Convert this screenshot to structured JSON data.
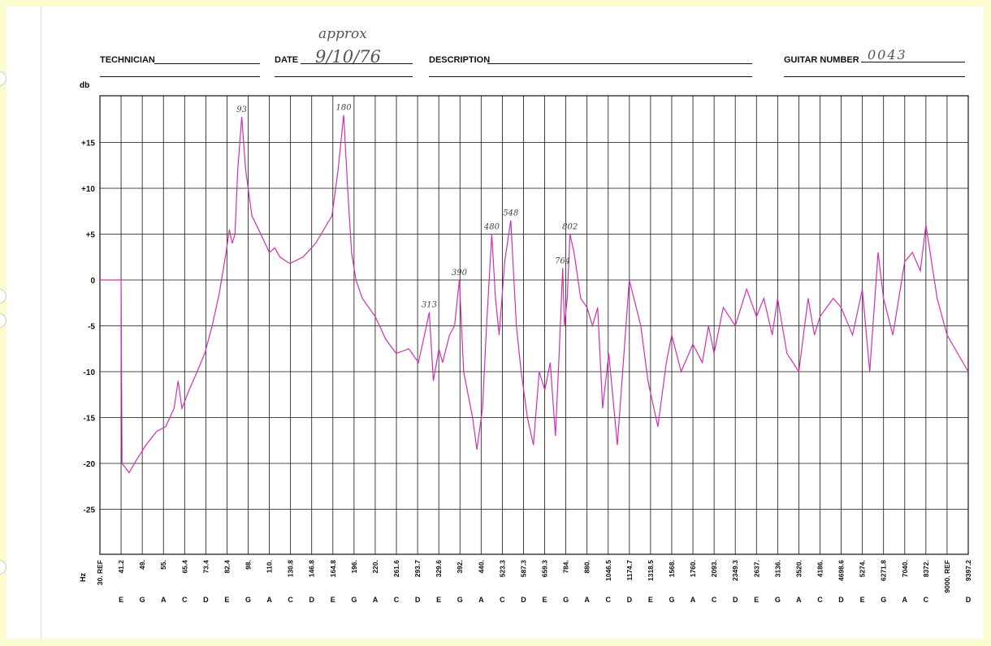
{
  "header": {
    "technician_label": "TECHNICIAN",
    "date_label": "DATE",
    "date_note": "approx",
    "date_value": "9/10/76",
    "description_label": "DESCRIPTION",
    "guitar_number_label": "GUITAR NUMBER",
    "guitar_number_value": "0043"
  },
  "colors": {
    "trace": "#d12fb4",
    "grid": "#111111",
    "page": "#ffffff",
    "border": "#fbfbcf"
  },
  "chart_data": {
    "type": "line",
    "ylabel": "db",
    "xlabel": "Hz",
    "ylim": [
      -30,
      20
    ],
    "y_ticks": [
      15,
      10,
      5,
      0,
      -5,
      -10,
      -15,
      -20,
      -25
    ],
    "y_tick_labels": [
      "+15",
      "+10",
      "+5",
      "0",
      "-5",
      "-10",
      "-15",
      "-20",
      "-25"
    ],
    "x_columns": [
      {
        "note": "",
        "freq": "30. REF"
      },
      {
        "note": "E",
        "freq": "41.2"
      },
      {
        "note": "G",
        "freq": "49."
      },
      {
        "note": "A",
        "freq": "55."
      },
      {
        "note": "C",
        "freq": "65.4"
      },
      {
        "note": "D",
        "freq": "73.4"
      },
      {
        "note": "E",
        "freq": "82.4"
      },
      {
        "note": "G",
        "freq": "98."
      },
      {
        "note": "A",
        "freq": "110."
      },
      {
        "note": "C",
        "freq": "130.8"
      },
      {
        "note": "D",
        "freq": "146.8"
      },
      {
        "note": "E",
        "freq": "164.8"
      },
      {
        "note": "G",
        "freq": "196."
      },
      {
        "note": "A",
        "freq": "220."
      },
      {
        "note": "C",
        "freq": "261.6"
      },
      {
        "note": "D",
        "freq": "293.7"
      },
      {
        "note": "E",
        "freq": "329.6"
      },
      {
        "note": "G",
        "freq": "392."
      },
      {
        "note": "A",
        "freq": "440."
      },
      {
        "note": "C",
        "freq": "523.3"
      },
      {
        "note": "D",
        "freq": "587.3"
      },
      {
        "note": "E",
        "freq": "659.3"
      },
      {
        "note": "G",
        "freq": "784."
      },
      {
        "note": "A",
        "freq": "880."
      },
      {
        "note": "C",
        "freq": "1046.5"
      },
      {
        "note": "D",
        "freq": "1174.7"
      },
      {
        "note": "E",
        "freq": "1318.5"
      },
      {
        "note": "G",
        "freq": "1568."
      },
      {
        "note": "A",
        "freq": "1760."
      },
      {
        "note": "C",
        "freq": "2093."
      },
      {
        "note": "D",
        "freq": "2349.3"
      },
      {
        "note": "E",
        "freq": "2637."
      },
      {
        "note": "G",
        "freq": "3136."
      },
      {
        "note": "A",
        "freq": "3520."
      },
      {
        "note": "C",
        "freq": "4186."
      },
      {
        "note": "D",
        "freq": "4698.6"
      },
      {
        "note": "E",
        "freq": "5274."
      },
      {
        "note": "G",
        "freq": "6271.8"
      },
      {
        "note": "A",
        "freq": "7040."
      },
      {
        "note": "C",
        "freq": "8372."
      },
      {
        "note": "",
        "freq": "9000. REF"
      },
      {
        "note": "D",
        "freq": "9397.2"
      }
    ],
    "peak_annotations": [
      {
        "label": "93",
        "freq": 93,
        "db": 17.8
      },
      {
        "label": "180",
        "freq": 180,
        "db": 18
      },
      {
        "label": "313",
        "freq": 313,
        "db": -3.5
      },
      {
        "label": "390",
        "freq": 390,
        "db": 0
      },
      {
        "label": "480",
        "freq": 480,
        "db": 5
      },
      {
        "label": "548",
        "freq": 548,
        "db": 6.5
      },
      {
        "label": "764",
        "freq": 764,
        "db": 1.3
      },
      {
        "label": "802",
        "freq": 802,
        "db": 5
      }
    ],
    "series": [
      {
        "points": [
          [
            30,
            0
          ],
          [
            41.2,
            0
          ],
          [
            41.5,
            -20
          ],
          [
            44,
            -21
          ],
          [
            47,
            -19.5
          ],
          [
            50,
            -18
          ],
          [
            53,
            -16.5
          ],
          [
            56,
            -16
          ],
          [
            60,
            -14
          ],
          [
            62,
            -11
          ],
          [
            64,
            -14
          ],
          [
            67,
            -12
          ],
          [
            70,
            -10
          ],
          [
            73,
            -8
          ],
          [
            76,
            -5
          ],
          [
            79,
            -1.5
          ],
          [
            82,
            3
          ],
          [
            84,
            5.5
          ],
          [
            86,
            4
          ],
          [
            88,
            5
          ],
          [
            90,
            12
          ],
          [
            93,
            17.8
          ],
          [
            96,
            12
          ],
          [
            100,
            7
          ],
          [
            105,
            5
          ],
          [
            110,
            3
          ],
          [
            115,
            3.5
          ],
          [
            120,
            2.5
          ],
          [
            130,
            1.8
          ],
          [
            140,
            2.5
          ],
          [
            150,
            4
          ],
          [
            164,
            7
          ],
          [
            172,
            12
          ],
          [
            180,
            18
          ],
          [
            186,
            10
          ],
          [
            192,
            3
          ],
          [
            198,
            0
          ],
          [
            205,
            -2
          ],
          [
            220,
            -4
          ],
          [
            240,
            -6.5
          ],
          [
            261,
            -8
          ],
          [
            280,
            -7.5
          ],
          [
            295,
            -9
          ],
          [
            305,
            -6
          ],
          [
            313,
            -3.5
          ],
          [
            320,
            -11
          ],
          [
            330,
            -7.5
          ],
          [
            340,
            -9
          ],
          [
            360,
            -6
          ],
          [
            375,
            -5
          ],
          [
            390,
            0
          ],
          [
            400,
            -10
          ],
          [
            420,
            -15
          ],
          [
            430,
            -18.5
          ],
          [
            445,
            -14
          ],
          [
            460,
            -5
          ],
          [
            480,
            5
          ],
          [
            495,
            -2
          ],
          [
            510,
            -6
          ],
          [
            530,
            2
          ],
          [
            548,
            6.5
          ],
          [
            565,
            -5
          ],
          [
            580,
            -10
          ],
          [
            600,
            -15
          ],
          [
            620,
            -18
          ],
          [
            640,
            -10
          ],
          [
            660,
            -12
          ],
          [
            690,
            -9
          ],
          [
            720,
            -17
          ],
          [
            740,
            -9
          ],
          [
            764,
            1.3
          ],
          [
            775,
            -5
          ],
          [
            790,
            -2
          ],
          [
            802,
            5
          ],
          [
            820,
            3
          ],
          [
            850,
            -2
          ],
          [
            880,
            -3
          ],
          [
            920,
            -5
          ],
          [
            960,
            -3
          ],
          [
            1000,
            -14
          ],
          [
            1050,
            -8
          ],
          [
            1100,
            -18
          ],
          [
            1174,
            0
          ],
          [
            1250,
            -5
          ],
          [
            1300,
            -11
          ],
          [
            1400,
            -16
          ],
          [
            1500,
            -9
          ],
          [
            1568,
            -6
          ],
          [
            1650,
            -10
          ],
          [
            1760,
            -7
          ],
          [
            1900,
            -9
          ],
          [
            2000,
            -5
          ],
          [
            2093,
            -8
          ],
          [
            2200,
            -3
          ],
          [
            2349,
            -5
          ],
          [
            2500,
            -1
          ],
          [
            2637,
            -4
          ],
          [
            2800,
            -2
          ],
          [
            3000,
            -6
          ],
          [
            3136,
            -2
          ],
          [
            3300,
            -8
          ],
          [
            3520,
            -10
          ],
          [
            3800,
            -2
          ],
          [
            4000,
            -6
          ],
          [
            4186,
            -4
          ],
          [
            4500,
            -2
          ],
          [
            4698,
            -3
          ],
          [
            5000,
            -6
          ],
          [
            5274,
            -1
          ],
          [
            5600,
            -10
          ],
          [
            6000,
            3
          ],
          [
            6271,
            -2
          ],
          [
            6600,
            -6
          ],
          [
            7040,
            2
          ],
          [
            7500,
            3
          ],
          [
            8000,
            1
          ],
          [
            8372,
            6
          ],
          [
            8700,
            -2
          ],
          [
            9000,
            -6
          ],
          [
            9397,
            -10
          ]
        ]
      }
    ]
  }
}
